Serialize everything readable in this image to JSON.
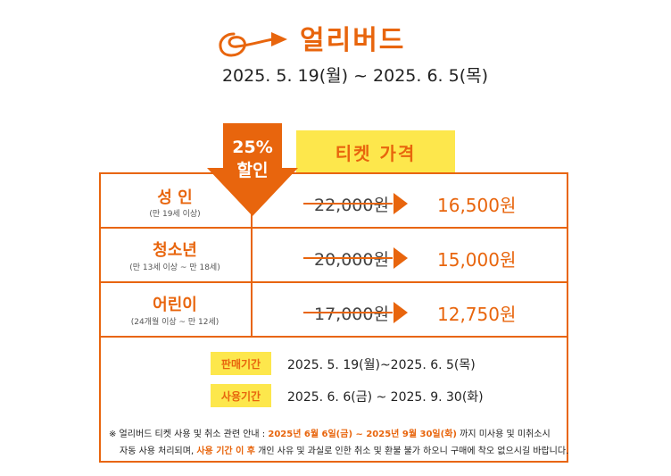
{
  "header": {
    "title": "얼리버드",
    "date_range": "2025. 5. 19(월) ~ 2025. 6. 5(목)"
  },
  "discount_badge": {
    "line1": "25%",
    "line2": "할인"
  },
  "price_header": "티켓 가격",
  "categories": [
    {
      "name": "성 인",
      "condition": "(만 19세 이상)",
      "original_price": "22,000원",
      "discount_price": "16,500원"
    },
    {
      "name": "청소년",
      "condition": "(만 13세 이상 ~ 만 18세)",
      "original_price": "20,000원",
      "discount_price": "15,000원"
    },
    {
      "name": "어린이",
      "condition": "(24개월 이상 ~ 만 12세)",
      "original_price": "17,000원",
      "discount_price": "12,750원"
    }
  ],
  "periods": [
    {
      "label": "판매기간",
      "value": "2025. 5. 19(월)~2025. 6. 5(목)"
    },
    {
      "label": "사용기간",
      "value": "2025. 6. 6(금) ~ 2025. 9. 30(화)"
    }
  ],
  "notice": {
    "line1_prefix": "※ 얼리버드 티켓 사용 및 취소 관련 안내 : ",
    "line1_highlight": "2025년 6월 6일(금) ~ 2025년 9월 30일(화)",
    "line1_suffix": " 까지 미사용 및 미취소시",
    "line2_prefix": "자동 사용 처리되며, ",
    "line2_highlight": "사용 기간 이 후",
    "line2_suffix": " 개인 사유 및 과실로 인한 취소 및 환불 불가 하오니 구매에 착오 없으시길 바랍니다."
  },
  "colors": {
    "accent": "#e8650d",
    "highlight_bg": "#fde74c"
  }
}
